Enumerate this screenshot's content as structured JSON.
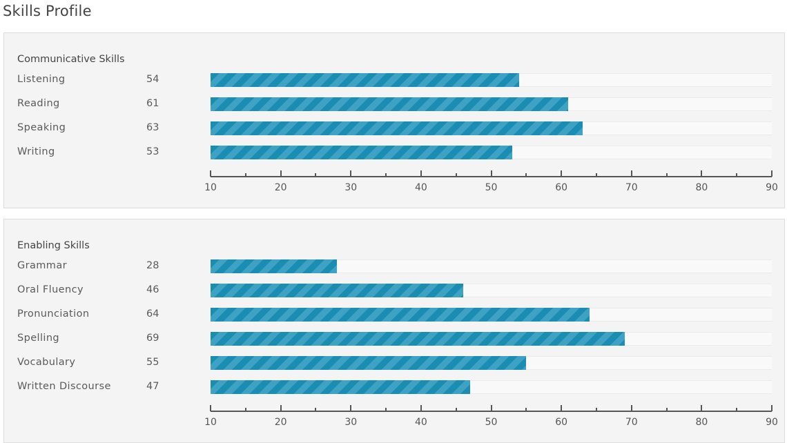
{
  "page": {
    "title": "Skills Profile"
  },
  "accent_colors": {
    "bar_dark": "#1b8db2",
    "bar_light": "#3ea2c4",
    "panel_bg": "#f4f4f4"
  },
  "chart_data": [
    {
      "type": "bar",
      "orientation": "horizontal",
      "title": "Communicative Skills",
      "categories": [
        "Listening",
        "Reading",
        "Speaking",
        "Writing"
      ],
      "values": [
        54,
        61,
        63,
        53
      ],
      "xlim": [
        10,
        90
      ],
      "ticks": [
        "10",
        "20",
        "30",
        "40",
        "50",
        "60",
        "70",
        "80",
        "90"
      ]
    },
    {
      "type": "bar",
      "orientation": "horizontal",
      "title": "Enabling Skills",
      "categories": [
        "Grammar",
        "Oral Fluency",
        "Pronunciation",
        "Spelling",
        "Vocabulary",
        "Written Discourse"
      ],
      "values": [
        28,
        46,
        64,
        69,
        55,
        47
      ],
      "xlim": [
        10,
        90
      ],
      "ticks": [
        "10",
        "20",
        "30",
        "40",
        "50",
        "60",
        "70",
        "80",
        "90"
      ]
    }
  ]
}
